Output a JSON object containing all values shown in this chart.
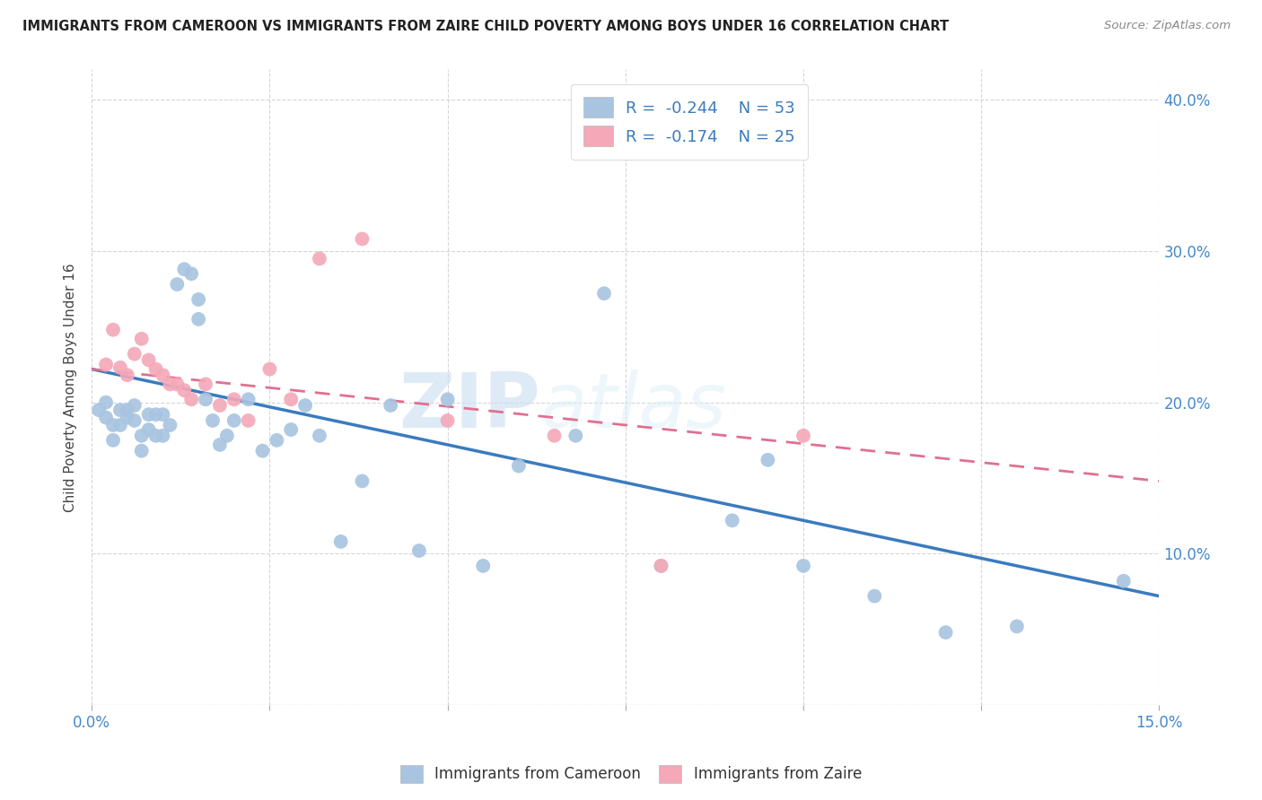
{
  "title": "IMMIGRANTS FROM CAMEROON VS IMMIGRANTS FROM ZAIRE CHILD POVERTY AMONG BOYS UNDER 16 CORRELATION CHART",
  "source": "Source: ZipAtlas.com",
  "ylabel": "Child Poverty Among Boys Under 16",
  "xlim": [
    0.0,
    0.15
  ],
  "ylim": [
    0.0,
    0.42
  ],
  "xticks": [
    0.0,
    0.025,
    0.05,
    0.075,
    0.1,
    0.125,
    0.15
  ],
  "yticks": [
    0.0,
    0.1,
    0.2,
    0.3,
    0.4
  ],
  "ytick_labels": [
    "",
    "10.0%",
    "20.0%",
    "30.0%",
    "40.0%"
  ],
  "xtick_labels": [
    "0.0%",
    "",
    "",
    "",
    "",
    "",
    "15.0%"
  ],
  "cameroon_R": -0.244,
  "cameroon_N": 53,
  "zaire_R": -0.174,
  "zaire_N": 25,
  "cameroon_color": "#a8c4e0",
  "zaire_color": "#f4a8b8",
  "cameroon_line_color": "#3a7bbf",
  "zaire_line_color": "#e07090",
  "background_color": "#ffffff",
  "grid_color": "#cccccc",
  "watermark_zip": "ZIP",
  "watermark_atlas": "atlas",
  "cam_line_x0": 0.0,
  "cam_line_y0": 0.222,
  "cam_line_x1": 0.15,
  "cam_line_y1": 0.072,
  "zaire_line_x0": 0.0,
  "zaire_line_y0": 0.222,
  "zaire_line_x1": 0.15,
  "zaire_line_y1": 0.148,
  "cameroon_x": [
    0.001,
    0.002,
    0.002,
    0.003,
    0.003,
    0.004,
    0.004,
    0.005,
    0.005,
    0.006,
    0.006,
    0.007,
    0.007,
    0.008,
    0.008,
    0.009,
    0.009,
    0.01,
    0.01,
    0.011,
    0.012,
    0.013,
    0.014,
    0.015,
    0.015,
    0.016,
    0.017,
    0.018,
    0.019,
    0.02,
    0.022,
    0.024,
    0.026,
    0.028,
    0.03,
    0.032,
    0.035,
    0.038,
    0.042,
    0.046,
    0.05,
    0.055,
    0.06,
    0.068,
    0.072,
    0.08,
    0.09,
    0.095,
    0.1,
    0.11,
    0.12,
    0.13,
    0.145
  ],
  "cameroon_y": [
    0.195,
    0.2,
    0.19,
    0.185,
    0.175,
    0.185,
    0.195,
    0.19,
    0.195,
    0.188,
    0.198,
    0.178,
    0.168,
    0.182,
    0.192,
    0.178,
    0.192,
    0.178,
    0.192,
    0.185,
    0.278,
    0.288,
    0.285,
    0.268,
    0.255,
    0.202,
    0.188,
    0.172,
    0.178,
    0.188,
    0.202,
    0.168,
    0.175,
    0.182,
    0.198,
    0.178,
    0.108,
    0.148,
    0.198,
    0.102,
    0.202,
    0.092,
    0.158,
    0.178,
    0.272,
    0.092,
    0.122,
    0.162,
    0.092,
    0.072,
    0.048,
    0.052,
    0.082
  ],
  "zaire_x": [
    0.002,
    0.003,
    0.004,
    0.005,
    0.006,
    0.007,
    0.008,
    0.009,
    0.01,
    0.011,
    0.012,
    0.013,
    0.014,
    0.016,
    0.018,
    0.02,
    0.022,
    0.025,
    0.028,
    0.032,
    0.038,
    0.05,
    0.065,
    0.08,
    0.1
  ],
  "zaire_y": [
    0.225,
    0.248,
    0.223,
    0.218,
    0.232,
    0.242,
    0.228,
    0.222,
    0.218,
    0.212,
    0.212,
    0.208,
    0.202,
    0.212,
    0.198,
    0.202,
    0.188,
    0.222,
    0.202,
    0.295,
    0.308,
    0.188,
    0.178,
    0.092,
    0.178
  ]
}
